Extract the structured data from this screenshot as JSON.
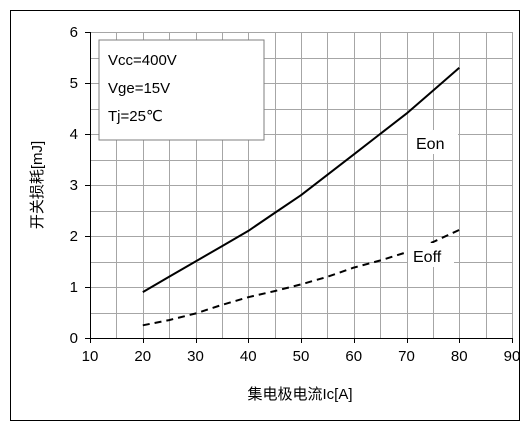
{
  "chart_data": {
    "type": "line",
    "xlabel": "集电极电流Ic[A]",
    "ylabel": "开关损耗[mJ]",
    "xlim": [
      10,
      90
    ],
    "ylim": [
      0,
      6
    ],
    "xticks": [
      10,
      20,
      30,
      40,
      50,
      60,
      70,
      80,
      90
    ],
    "yticks": [
      0,
      1,
      2,
      3,
      4,
      5,
      6
    ],
    "grid": true,
    "conditions": [
      "Vcc=400V",
      "Vge=15V",
      "Tj=25℃"
    ],
    "series": [
      {
        "name": "Eon",
        "style": "solid",
        "x": [
          20,
          25,
          30,
          35,
          40,
          45,
          50,
          55,
          60,
          65,
          70,
          75,
          80
        ],
        "y": [
          0.9,
          1.2,
          1.5,
          1.8,
          2.1,
          2.45,
          2.8,
          3.2,
          3.6,
          4.0,
          4.4,
          4.85,
          5.3
        ]
      },
      {
        "name": "Eoff",
        "style": "dashed",
        "x": [
          20,
          25,
          30,
          35,
          40,
          45,
          50,
          55,
          60,
          65,
          70,
          75,
          80
        ],
        "y": [
          0.25,
          0.35,
          0.48,
          0.65,
          0.8,
          0.92,
          1.05,
          1.2,
          1.38,
          1.52,
          1.68,
          1.88,
          2.12
        ]
      }
    ]
  },
  "colors": {
    "line": "#000000",
    "grid": "#a6a6a6",
    "frame": "#000000",
    "box_border": "#7f7f7f"
  }
}
